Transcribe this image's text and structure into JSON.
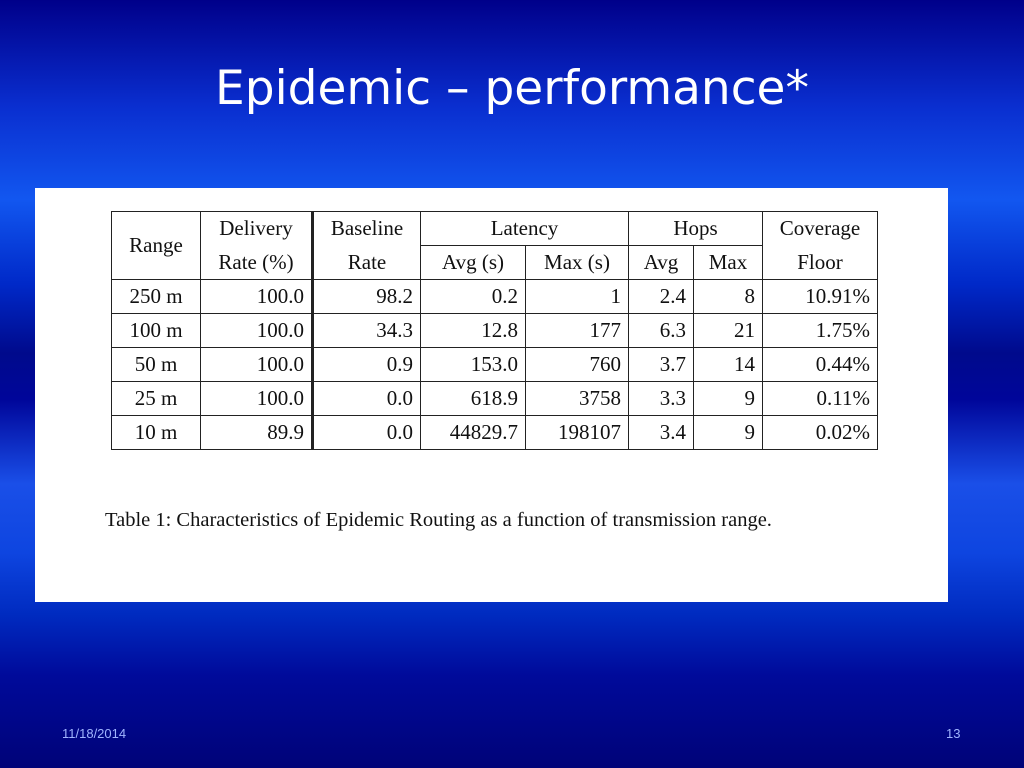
{
  "slide": {
    "title": "Epidemic – performance*",
    "footer_date": "11/18/2014",
    "page_number": "13"
  },
  "table": {
    "header_top": {
      "range": "Range",
      "delivery": "Delivery",
      "baseline": "Baseline",
      "latency": "Latency",
      "hops": "Hops",
      "coverage": "Coverage"
    },
    "header_bottom": {
      "delivery": "Rate (%)",
      "baseline": "Rate",
      "latency_avg": "Avg (s)",
      "latency_max": "Max (s)",
      "hops_avg": "Avg",
      "hops_max": "Max",
      "coverage": "Floor"
    },
    "rows": [
      [
        "250 m",
        "100.0",
        "98.2",
        "0.2",
        "1",
        "2.4",
        "8",
        "10.91%"
      ],
      [
        "100 m",
        "100.0",
        "34.3",
        "12.8",
        "177",
        "6.3",
        "21",
        "1.75%"
      ],
      [
        "50 m",
        "100.0",
        "0.9",
        "153.0",
        "760",
        "3.7",
        "14",
        "0.44%"
      ],
      [
        "25 m",
        "100.0",
        "0.0",
        "618.9",
        "3758",
        "3.3",
        "9",
        "0.11%"
      ],
      [
        "10 m",
        "89.9",
        "0.0",
        "44829.7",
        "198107",
        "3.4",
        "9",
        "0.02%"
      ]
    ],
    "caption": "Table 1: Characteristics of Epidemic Routing as a function of transmission range."
  },
  "colors": {
    "background_dark": "#00008a",
    "background_light": "#1257f0",
    "title_text": "#ffffff",
    "footer_text": "#9fb4ff",
    "panel": "#ffffff"
  }
}
